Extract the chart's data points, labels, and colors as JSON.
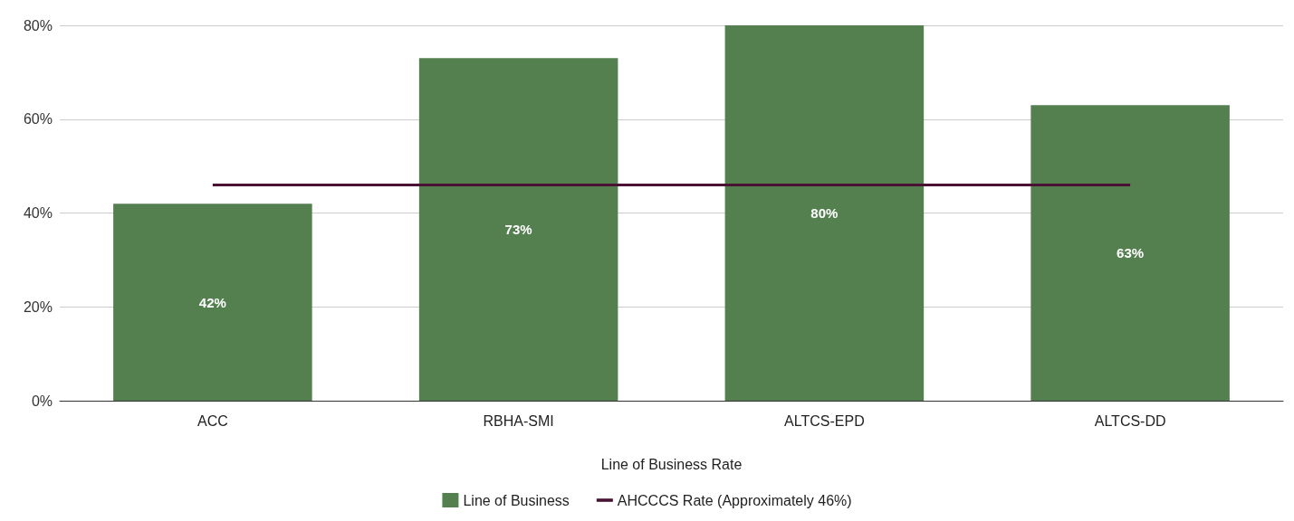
{
  "chart_data": {
    "type": "bar",
    "xlabel": "Line of Business Rate",
    "categories": [
      "ACC",
      "RBHA-SMI",
      "ALTCS-EPD",
      "ALTCS-DD"
    ],
    "series": [
      {
        "name": "Line of Business",
        "color": "#548050",
        "values": [
          42,
          73,
          80,
          63
        ],
        "value_labels": [
          "42%",
          "73%",
          "80%",
          "63%"
        ]
      },
      {
        "name": "AHCCCS Rate (Approximately 46%)",
        "type": "line",
        "color": "#4a1232",
        "values": [
          46,
          46,
          46,
          46
        ],
        "marker": "none"
      }
    ],
    "ylim": [
      0,
      80
    ],
    "yticks": [
      {
        "value": 0,
        "label": "0%"
      },
      {
        "value": 20,
        "label": "20%"
      },
      {
        "value": 40,
        "label": "40%"
      },
      {
        "value": 60,
        "label": "60%"
      },
      {
        "value": 80,
        "label": "80%"
      }
    ],
    "grid": "y",
    "legend": "bottom"
  }
}
